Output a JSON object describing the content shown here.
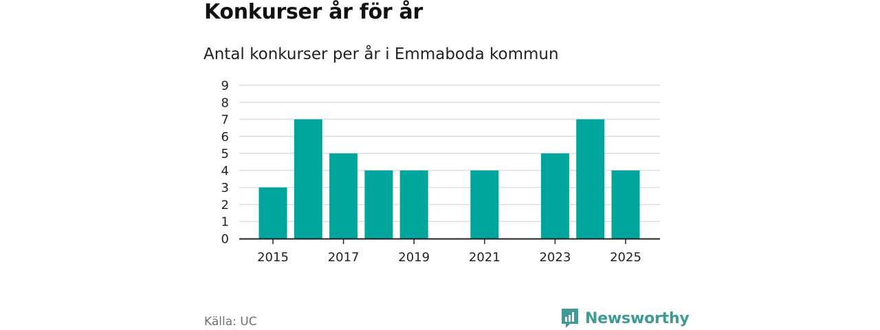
{
  "header": {
    "title": "Konkurser år för år",
    "subtitle": "Antal konkurser per år i Emmaboda kommun"
  },
  "footer": {
    "source": "Källa: UC",
    "brand": "Newsworthy",
    "brand_icon": "newsworthy-logo-icon"
  },
  "colors": {
    "bar": "#00a59b",
    "grid": "#dddddd",
    "axis": "#222222",
    "brand": "#3e9a94"
  },
  "chart_data": {
    "type": "bar",
    "title": "Konkurser år för år",
    "subtitle": "Antal konkurser per år i Emmaboda kommun",
    "categories": [
      2015,
      2016,
      2017,
      2018,
      2019,
      2020,
      2021,
      2022,
      2023,
      2024,
      2025
    ],
    "values": [
      3,
      7,
      5,
      4,
      4,
      0,
      4,
      0,
      5,
      7,
      4
    ],
    "x_tick_labels": [
      "2015",
      "2017",
      "2019",
      "2021",
      "2023",
      "2025"
    ],
    "y_ticks": [
      0,
      1,
      2,
      3,
      4,
      5,
      6,
      7,
      8,
      9
    ],
    "ylim": [
      0,
      9
    ],
    "xlabel": "",
    "ylabel": "",
    "grid": true,
    "legend": "none"
  }
}
